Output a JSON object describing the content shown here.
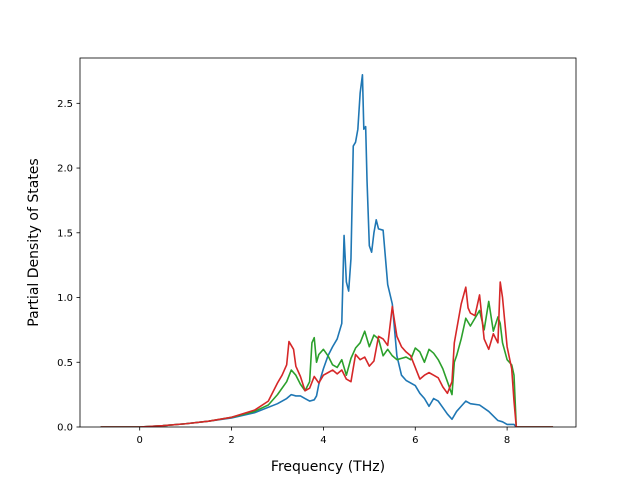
{
  "chart_data": {
    "type": "line",
    "title": "",
    "xlabel": "Frequency (THz)",
    "ylabel": "Partial Density of States",
    "xlim": [
      -1.3,
      9.5
    ],
    "ylim": [
      0.0,
      2.85
    ],
    "x_ticks": [
      0,
      2,
      4,
      6,
      8
    ],
    "x_tick_labels": [
      "0",
      "2",
      "4",
      "6",
      "8"
    ],
    "y_ticks": [
      0.0,
      0.5,
      1.0,
      1.5,
      2.0,
      2.5
    ],
    "y_tick_labels": [
      "0.0",
      "0.5",
      "1.0",
      "1.5",
      "2.0",
      "2.5"
    ],
    "grid": false,
    "legend": "none",
    "series": [
      {
        "color": "#1f77b4",
        "points": [
          [
            -0.85,
            0
          ],
          [
            0,
            0
          ],
          [
            0.5,
            0.01
          ],
          [
            1,
            0.025
          ],
          [
            1.5,
            0.045
          ],
          [
            2,
            0.07
          ],
          [
            2.5,
            0.11
          ],
          [
            3,
            0.18
          ],
          [
            3.2,
            0.22
          ],
          [
            3.3,
            0.25
          ],
          [
            3.4,
            0.24
          ],
          [
            3.5,
            0.24
          ],
          [
            3.6,
            0.22
          ],
          [
            3.7,
            0.2
          ],
          [
            3.8,
            0.21
          ],
          [
            3.85,
            0.24
          ],
          [
            3.9,
            0.33
          ],
          [
            4.0,
            0.45
          ],
          [
            4.1,
            0.55
          ],
          [
            4.2,
            0.62
          ],
          [
            4.3,
            0.68
          ],
          [
            4.4,
            0.8
          ],
          [
            4.45,
            1.48
          ],
          [
            4.5,
            1.12
          ],
          [
            4.55,
            1.05
          ],
          [
            4.6,
            1.3
          ],
          [
            4.65,
            2.17
          ],
          [
            4.7,
            2.2
          ],
          [
            4.75,
            2.3
          ],
          [
            4.8,
            2.58
          ],
          [
            4.85,
            2.72
          ],
          [
            4.88,
            2.3
          ],
          [
            4.92,
            2.32
          ],
          [
            4.95,
            1.9
          ],
          [
            5.0,
            1.4
          ],
          [
            5.05,
            1.35
          ],
          [
            5.1,
            1.5
          ],
          [
            5.15,
            1.6
          ],
          [
            5.2,
            1.53
          ],
          [
            5.3,
            1.52
          ],
          [
            5.4,
            1.1
          ],
          [
            5.5,
            0.95
          ],
          [
            5.6,
            0.55
          ],
          [
            5.7,
            0.4
          ],
          [
            5.8,
            0.36
          ],
          [
            6.0,
            0.32
          ],
          [
            6.1,
            0.26
          ],
          [
            6.2,
            0.22
          ],
          [
            6.3,
            0.16
          ],
          [
            6.4,
            0.22
          ],
          [
            6.5,
            0.2
          ],
          [
            6.6,
            0.15
          ],
          [
            6.7,
            0.1
          ],
          [
            6.8,
            0.06
          ],
          [
            6.9,
            0.12
          ],
          [
            7.0,
            0.16
          ],
          [
            7.1,
            0.2
          ],
          [
            7.2,
            0.18
          ],
          [
            7.4,
            0.17
          ],
          [
            7.6,
            0.12
          ],
          [
            7.8,
            0.05
          ],
          [
            7.9,
            0.04
          ],
          [
            8.0,
            0.02
          ],
          [
            8.15,
            0.02
          ],
          [
            8.2,
            0
          ],
          [
            9.0,
            0
          ]
        ]
      },
      {
        "color": "#2ca02c",
        "points": [
          [
            -0.85,
            0
          ],
          [
            0,
            0
          ],
          [
            0.5,
            0.01
          ],
          [
            1,
            0.025
          ],
          [
            1.5,
            0.045
          ],
          [
            2,
            0.075
          ],
          [
            2.5,
            0.12
          ],
          [
            2.8,
            0.17
          ],
          [
            3.0,
            0.25
          ],
          [
            3.2,
            0.35
          ],
          [
            3.3,
            0.44
          ],
          [
            3.4,
            0.4
          ],
          [
            3.5,
            0.33
          ],
          [
            3.6,
            0.28
          ],
          [
            3.7,
            0.35
          ],
          [
            3.75,
            0.65
          ],
          [
            3.8,
            0.69
          ],
          [
            3.85,
            0.5
          ],
          [
            3.9,
            0.56
          ],
          [
            4.0,
            0.6
          ],
          [
            4.1,
            0.55
          ],
          [
            4.2,
            0.48
          ],
          [
            4.3,
            0.46
          ],
          [
            4.4,
            0.52
          ],
          [
            4.5,
            0.4
          ],
          [
            4.6,
            0.53
          ],
          [
            4.7,
            0.61
          ],
          [
            4.8,
            0.65
          ],
          [
            4.9,
            0.74
          ],
          [
            5.0,
            0.62
          ],
          [
            5.1,
            0.71
          ],
          [
            5.2,
            0.68
          ],
          [
            5.3,
            0.55
          ],
          [
            5.4,
            0.6
          ],
          [
            5.5,
            0.55
          ],
          [
            5.6,
            0.52
          ],
          [
            5.7,
            0.53
          ],
          [
            5.8,
            0.54
          ],
          [
            5.9,
            0.52
          ],
          [
            6.0,
            0.61
          ],
          [
            6.1,
            0.58
          ],
          [
            6.2,
            0.5
          ],
          [
            6.3,
            0.6
          ],
          [
            6.4,
            0.57
          ],
          [
            6.5,
            0.52
          ],
          [
            6.6,
            0.45
          ],
          [
            6.7,
            0.35
          ],
          [
            6.8,
            0.25
          ],
          [
            6.85,
            0.5
          ],
          [
            6.9,
            0.55
          ],
          [
            7.0,
            0.68
          ],
          [
            7.1,
            0.84
          ],
          [
            7.2,
            0.78
          ],
          [
            7.3,
            0.84
          ],
          [
            7.4,
            0.9
          ],
          [
            7.5,
            0.75
          ],
          [
            7.6,
            0.97
          ],
          [
            7.7,
            0.74
          ],
          [
            7.8,
            0.85
          ],
          [
            7.85,
            0.8
          ],
          [
            7.9,
            0.65
          ],
          [
            8.0,
            0.52
          ],
          [
            8.1,
            0.48
          ],
          [
            8.15,
            0.4
          ],
          [
            8.2,
            0
          ],
          [
            9.0,
            0
          ]
        ]
      },
      {
        "color": "#d62728",
        "points": [
          [
            -0.85,
            0
          ],
          [
            0,
            0
          ],
          [
            0.5,
            0.01
          ],
          [
            1,
            0.025
          ],
          [
            1.5,
            0.045
          ],
          [
            2,
            0.075
          ],
          [
            2.5,
            0.13
          ],
          [
            2.8,
            0.2
          ],
          [
            3.0,
            0.34
          ],
          [
            3.1,
            0.4
          ],
          [
            3.2,
            0.48
          ],
          [
            3.25,
            0.66
          ],
          [
            3.35,
            0.6
          ],
          [
            3.4,
            0.47
          ],
          [
            3.5,
            0.39
          ],
          [
            3.6,
            0.28
          ],
          [
            3.7,
            0.3
          ],
          [
            3.8,
            0.39
          ],
          [
            3.9,
            0.34
          ],
          [
            4.0,
            0.4
          ],
          [
            4.1,
            0.42
          ],
          [
            4.2,
            0.44
          ],
          [
            4.3,
            0.41
          ],
          [
            4.4,
            0.44
          ],
          [
            4.5,
            0.37
          ],
          [
            4.6,
            0.35
          ],
          [
            4.7,
            0.56
          ],
          [
            4.8,
            0.52
          ],
          [
            4.9,
            0.54
          ],
          [
            5.0,
            0.47
          ],
          [
            5.1,
            0.51
          ],
          [
            5.2,
            0.7
          ],
          [
            5.3,
            0.68
          ],
          [
            5.4,
            0.63
          ],
          [
            5.5,
            0.93
          ],
          [
            5.6,
            0.7
          ],
          [
            5.7,
            0.62
          ],
          [
            5.8,
            0.58
          ],
          [
            5.9,
            0.55
          ],
          [
            6.0,
            0.46
          ],
          [
            6.1,
            0.37
          ],
          [
            6.2,
            0.4
          ],
          [
            6.3,
            0.42
          ],
          [
            6.4,
            0.4
          ],
          [
            6.5,
            0.38
          ],
          [
            6.6,
            0.31
          ],
          [
            6.7,
            0.26
          ],
          [
            6.8,
            0.35
          ],
          [
            6.85,
            0.65
          ],
          [
            6.9,
            0.75
          ],
          [
            7.0,
            0.95
          ],
          [
            7.1,
            1.08
          ],
          [
            7.15,
            0.92
          ],
          [
            7.2,
            0.88
          ],
          [
            7.3,
            0.86
          ],
          [
            7.4,
            1.02
          ],
          [
            7.5,
            0.68
          ],
          [
            7.6,
            0.6
          ],
          [
            7.7,
            0.72
          ],
          [
            7.8,
            0.65
          ],
          [
            7.85,
            1.12
          ],
          [
            7.9,
            1.0
          ],
          [
            8.0,
            0.62
          ],
          [
            8.1,
            0.45
          ],
          [
            8.15,
            0.2
          ],
          [
            8.2,
            0
          ],
          [
            9.0,
            0
          ]
        ]
      }
    ]
  }
}
